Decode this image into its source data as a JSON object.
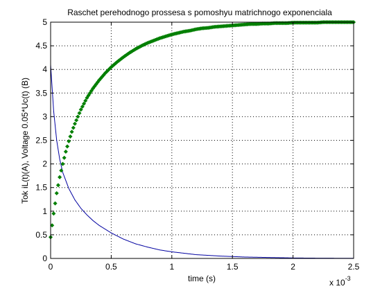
{
  "chart_data": {
    "type": "line",
    "title": "Raschet perehodnogo prossesa s pomoshyu matrichnogo exponenciala",
    "xlabel": "time (s)",
    "ylabel": "Tok iL(t)(A), Voltage 0.05*Uc(t) (B)",
    "x_multiplier": "x 10",
    "x_multiplier_exp": "-3",
    "xlim": [
      0,
      2.5
    ],
    "ylim": [
      0,
      5
    ],
    "x_tick_values": [
      0,
      0.5,
      1,
      1.5,
      2,
      2.5
    ],
    "x_tick_labels": [
      "0",
      "0.5",
      "1",
      "1.5",
      "2",
      "2.5"
    ],
    "y_tick_values": [
      0,
      0.5,
      1,
      1.5,
      2,
      2.5,
      3,
      3.5,
      4,
      4.5,
      5
    ],
    "y_tick_labels": [
      "0",
      "0.5",
      "1",
      "1.5",
      "2",
      "2.5",
      "3",
      "3.5",
      "4",
      "4.5",
      "5"
    ],
    "grid": true,
    "series": [
      {
        "color": "#0000a0",
        "marker": "none",
        "x": [
          0,
          0.025,
          0.05,
          0.075,
          0.1,
          0.15,
          0.2,
          0.25,
          0.3,
          0.35,
          0.4,
          0.5,
          0.6,
          0.7,
          0.8,
          0.9,
          1.0,
          1.2,
          1.4,
          1.6,
          1.8,
          2.0,
          2.2,
          2.5
        ],
        "values": [
          4.1,
          3.12,
          2.5,
          2.1,
          1.82,
          1.48,
          1.24,
          1.06,
          0.92,
          0.8,
          0.7,
          0.54,
          0.41,
          0.31,
          0.24,
          0.18,
          0.14,
          0.08,
          0.05,
          0.03,
          0.02,
          0.01,
          0.006,
          0.003
        ]
      },
      {
        "color": "#007f00",
        "marker": "diamond",
        "x": [
          0,
          0.025,
          0.05,
          0.075,
          0.1,
          0.125,
          0.15,
          0.175,
          0.2,
          0.25,
          0.3,
          0.35,
          0.4,
          0.45,
          0.5,
          0.55,
          0.6,
          0.65,
          0.7,
          0.75,
          0.8,
          0.85,
          0.9,
          0.95,
          1.0,
          1.05,
          1.1,
          1.15,
          1.2,
          1.25,
          1.3,
          1.35,
          1.4,
          1.45,
          1.5,
          1.55,
          1.6,
          1.65,
          1.7,
          1.75,
          1.8,
          1.85,
          1.9,
          1.95,
          2.0,
          2.05,
          2.1,
          2.15,
          2.2,
          2.25,
          2.3,
          2.35,
          2.4,
          2.45,
          2.5
        ],
        "values": [
          0.45,
          0.95,
          1.38,
          1.72,
          2.0,
          2.26,
          2.48,
          2.68,
          2.85,
          3.15,
          3.4,
          3.6,
          3.77,
          3.92,
          4.05,
          4.16,
          4.26,
          4.35,
          4.43,
          4.5,
          4.56,
          4.61,
          4.66,
          4.7,
          4.74,
          4.77,
          4.8,
          4.82,
          4.85,
          4.87,
          4.88,
          4.9,
          4.91,
          4.92,
          4.93,
          4.94,
          4.95,
          4.96,
          4.96,
          4.97,
          4.97,
          4.98,
          4.98,
          4.98,
          4.99,
          4.99,
          4.99,
          4.99,
          4.99,
          5.0,
          5.0,
          5.0,
          5.0,
          5.0,
          5.0
        ]
      }
    ]
  }
}
